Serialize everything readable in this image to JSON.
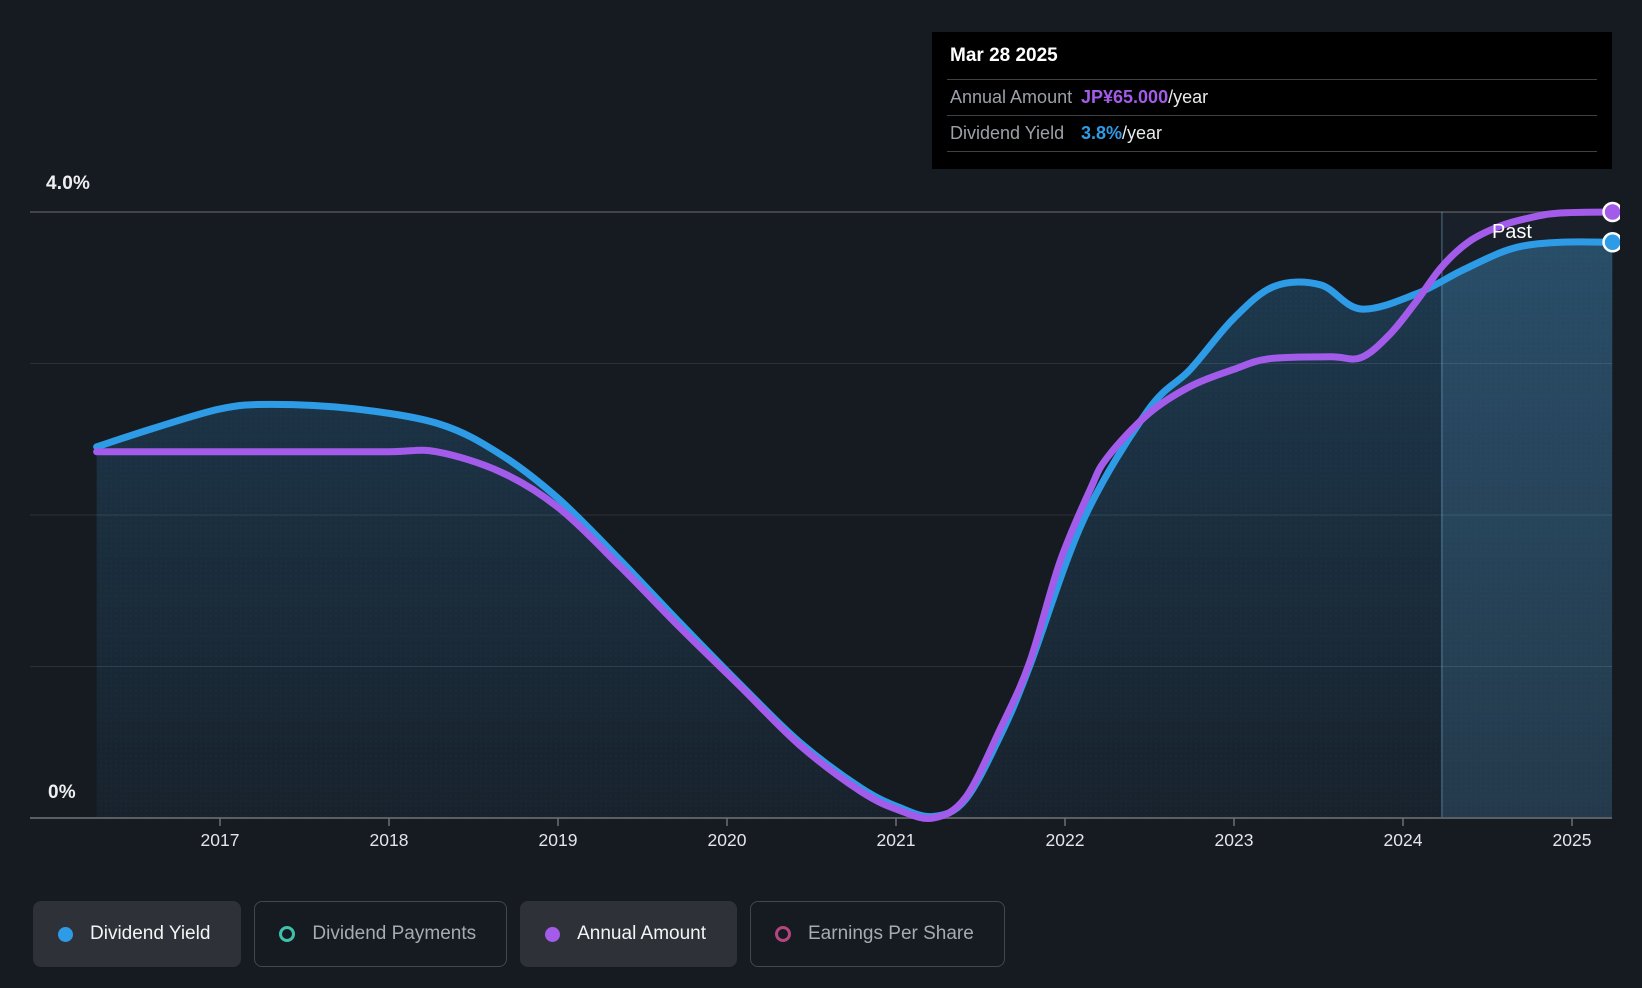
{
  "past_label": "Past",
  "tooltip": {
    "date": "Mar 28 2025",
    "rows": [
      {
        "label": "Annual Amount",
        "value": "JP¥65.000",
        "suffix": "/year",
        "color": "#A35BEA"
      },
      {
        "label": "Dividend Yield",
        "value": "3.8%",
        "suffix": "/year",
        "color": "#2D9BE5"
      }
    ]
  },
  "legend": {
    "items": [
      {
        "label": "Dividend Yield",
        "color": "#2D9BE5",
        "filled": true,
        "active": true
      },
      {
        "label": "Dividend Payments",
        "color": "#3FC1AD",
        "filled": false,
        "active": false
      },
      {
        "label": "Annual Amount",
        "color": "#A35BEA",
        "filled": true,
        "active": true
      },
      {
        "label": "Earnings Per Share",
        "color": "#B5457F",
        "filled": false,
        "active": false
      }
    ]
  },
  "chart_data": {
    "type": "line",
    "title": "",
    "x_axis": {
      "ticks": [
        2017,
        2018,
        2019,
        2020,
        2021,
        2022,
        2023,
        2024,
        2025
      ],
      "range": [
        2016.27,
        2025.24
      ]
    },
    "y_axis": {
      "unit": "%",
      "range": [
        0,
        4.0
      ],
      "gridlines_pct": [
        1,
        2,
        3,
        4
      ],
      "label_top": "4.0%",
      "label_bottom": "0%"
    },
    "amount_scale": {
      "max": 65,
      "yen_per_pct": 15.8,
      "note": "JP¥65/year aligns with the 4.0% gridline"
    },
    "past_divider_year": 2024.23,
    "legend_position": "bottom",
    "grid": true,
    "series": [
      {
        "name": "Dividend Yield",
        "visible": true,
        "unit": "%",
        "color": "#2D9BE5",
        "area": true,
        "points": [
          [
            2016.27,
            2.45
          ],
          [
            2016.6,
            2.57
          ],
          [
            2017.0,
            2.7
          ],
          [
            2017.3,
            2.73
          ],
          [
            2017.8,
            2.7
          ],
          [
            2018.3,
            2.6
          ],
          [
            2018.66,
            2.4
          ],
          [
            2019.0,
            2.11
          ],
          [
            2019.37,
            1.7
          ],
          [
            2019.72,
            1.29
          ],
          [
            2020.08,
            0.88
          ],
          [
            2020.43,
            0.5
          ],
          [
            2020.79,
            0.2
          ],
          [
            2021.02,
            0.07
          ],
          [
            2021.22,
            0.01
          ],
          [
            2021.41,
            0.12
          ],
          [
            2021.62,
            0.55
          ],
          [
            2021.79,
            1.0
          ],
          [
            2022.11,
            1.97
          ],
          [
            2022.49,
            2.69
          ],
          [
            2022.74,
            2.96
          ],
          [
            2023.0,
            3.3
          ],
          [
            2023.24,
            3.51
          ],
          [
            2023.51,
            3.52
          ],
          [
            2023.75,
            3.36
          ],
          [
            2024.08,
            3.46
          ],
          [
            2024.36,
            3.62
          ],
          [
            2024.65,
            3.76
          ],
          [
            2024.93,
            3.8
          ],
          [
            2025.24,
            3.8
          ]
        ]
      },
      {
        "name": "Annual Amount",
        "visible": true,
        "unit": "JP¥/year",
        "color": "#A35BEA",
        "area": false,
        "points": [
          [
            2016.27,
            40
          ],
          [
            2016.8,
            40
          ],
          [
            2017.4,
            40
          ],
          [
            2018.0,
            40
          ],
          [
            2018.28,
            40
          ],
          [
            2018.66,
            37.9
          ],
          [
            2019.0,
            34.2
          ],
          [
            2019.37,
            28.0
          ],
          [
            2019.72,
            21.7
          ],
          [
            2020.08,
            15.5
          ],
          [
            2020.43,
            9.4
          ],
          [
            2020.79,
            4.6
          ],
          [
            2021.02,
            2.6
          ],
          [
            2021.22,
            1.8
          ],
          [
            2021.41,
            3.9
          ],
          [
            2021.62,
            11.2
          ],
          [
            2021.79,
            18.0
          ],
          [
            2021.97,
            28.5
          ],
          [
            2022.15,
            36.1
          ],
          [
            2022.25,
            39.4
          ],
          [
            2022.49,
            43.9
          ],
          [
            2022.74,
            46.8
          ],
          [
            2023.0,
            48.6
          ],
          [
            2023.21,
            49.7
          ],
          [
            2023.57,
            49.9
          ],
          [
            2023.75,
            49.8
          ],
          [
            2023.92,
            52.2
          ],
          [
            2024.08,
            55.7
          ],
          [
            2024.23,
            59.3
          ],
          [
            2024.39,
            61.9
          ],
          [
            2024.57,
            63.5
          ],
          [
            2024.75,
            64.4
          ],
          [
            2024.93,
            64.9
          ],
          [
            2025.24,
            65.0
          ]
        ]
      },
      {
        "name": "Dividend Payments",
        "visible": false,
        "color": "#3FC1AD",
        "points": []
      },
      {
        "name": "Earnings Per Share",
        "visible": false,
        "color": "#B5457F",
        "points": []
      }
    ]
  }
}
